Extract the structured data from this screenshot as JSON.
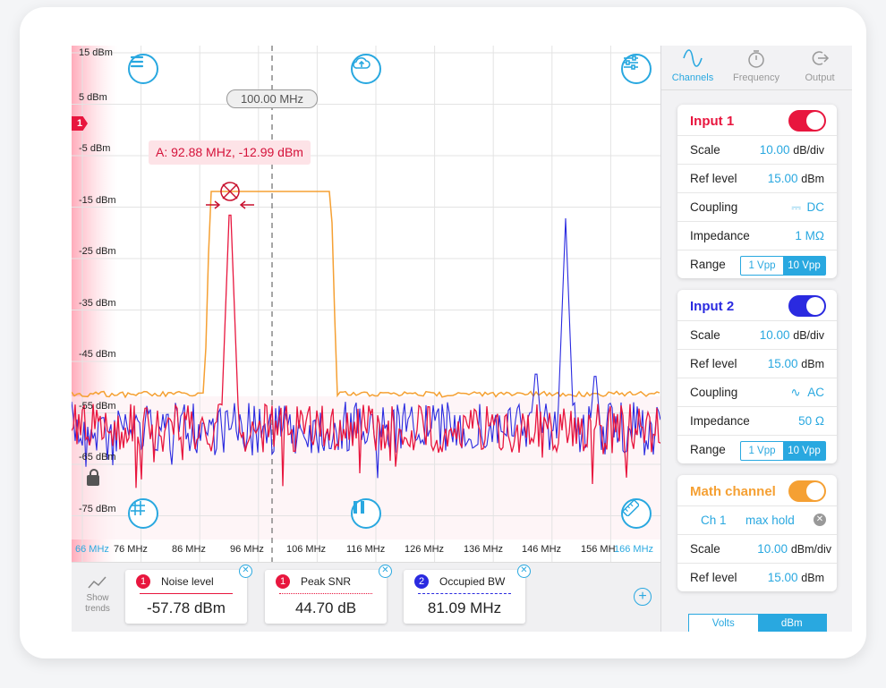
{
  "plot": {
    "y_labels": [
      "15 dBm",
      "5 dBm",
      "-5 dBm",
      "-15 dBm",
      "-25 dBm",
      "-35 dBm",
      "-45 dBm",
      "-55 dBm",
      "-65 dBm",
      "-75 dBm"
    ],
    "x_labels": [
      "66 MHz",
      "76 MHz",
      "86 MHz",
      "96 MHz",
      "106 MHz",
      "116 MHz",
      "126 MHz",
      "136 MHz",
      "146 MHz",
      "156 MH",
      "166 MHz"
    ],
    "center_freq": "100.00 MHz",
    "marker_label": "A: 92.88 MHz, -12.99 dBm",
    "channel_tag": "1",
    "colors": {
      "ch1": "#e8163e",
      "ch2": "#2a2ae0",
      "math": "#f5a033",
      "accent": "#29a8e0"
    },
    "icons": {
      "menu": "menu-icon",
      "upload": "cloud-upload-icon",
      "settings": "sliders-icon",
      "grid": "grid-icon",
      "pause": "pause-icon",
      "measure": "ruler-icon",
      "lock": "lock-icon"
    }
  },
  "bottom": {
    "trends_label_1": "Show",
    "trends_label_2": "trends",
    "cards": [
      {
        "num": "1",
        "title": "Noise level",
        "value": "-57.78 dBm"
      },
      {
        "num": "1",
        "title": "Peak SNR",
        "value": "44.70 dB"
      },
      {
        "num": "2",
        "title": "Occupied BW",
        "value": "81.09 MHz"
      }
    ]
  },
  "tabs": [
    {
      "label": "Channels",
      "icon": "sine-wave-icon"
    },
    {
      "label": "Frequency",
      "icon": "stopwatch-icon"
    },
    {
      "label": "Output",
      "icon": "output-icon"
    }
  ],
  "input1": {
    "title": "Input 1",
    "scale_k": "Scale",
    "scale_v": "10.00",
    "scale_u": "dB/div",
    "ref_k": "Ref level",
    "ref_v": "15.00",
    "ref_u": "dBm",
    "coupling_k": "Coupling",
    "coupling_v": "DC",
    "impedance_k": "Impedance",
    "impedance_v": "1 MΩ",
    "range_k": "Range",
    "range_a": "1 Vpp",
    "range_b": "10 Vpp"
  },
  "input2": {
    "title": "Input 2",
    "scale_k": "Scale",
    "scale_v": "10.00",
    "scale_u": "dB/div",
    "ref_k": "Ref level",
    "ref_v": "15.00",
    "ref_u": "dBm",
    "coupling_k": "Coupling",
    "coupling_v": "AC",
    "impedance_k": "Impedance",
    "impedance_v": "50 Ω",
    "range_k": "Range",
    "range_a": "1 Vpp",
    "range_b": "10 Vpp"
  },
  "math": {
    "title": "Math channel",
    "source": "Ch 1",
    "op": "max hold",
    "scale_k": "Scale",
    "scale_v": "10.00",
    "scale_u": "dBm/div",
    "ref_k": "Ref level",
    "ref_v": "15.00",
    "ref_u": "dBm"
  },
  "units": {
    "a": "Volts",
    "b": "dBm"
  }
}
